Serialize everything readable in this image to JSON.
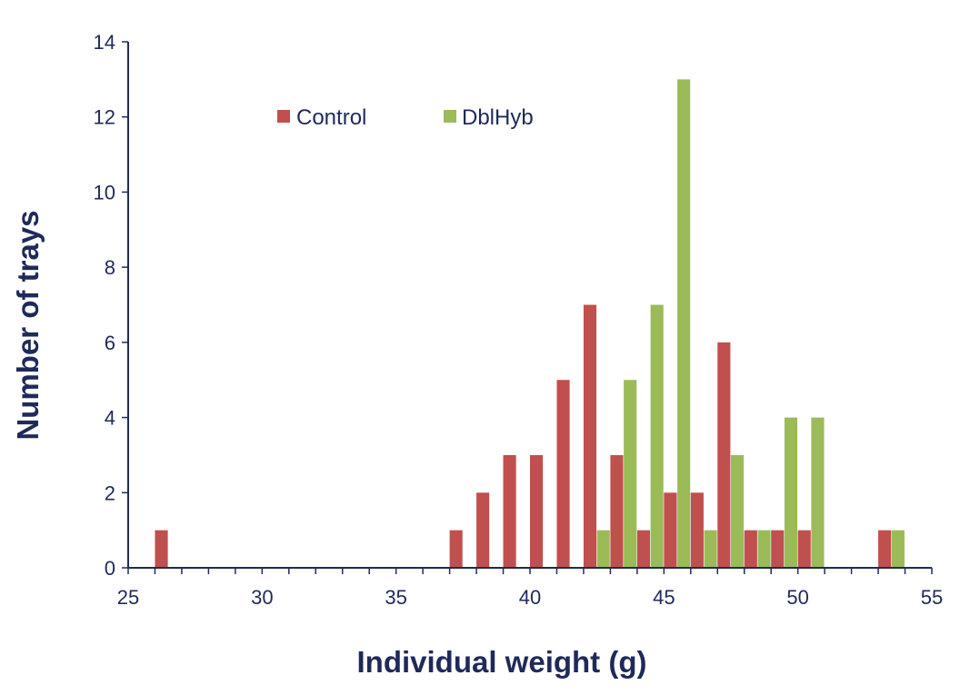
{
  "chart_data": {
    "type": "bar",
    "xlabel": "Individual weight (g)",
    "ylabel": "Number of trays",
    "xlim": [
      25,
      55
    ],
    "ylim": [
      0,
      14
    ],
    "x_ticks": [
      25,
      30,
      35,
      40,
      45,
      50,
      55
    ],
    "y_ticks": [
      0,
      2,
      4,
      6,
      8,
      10,
      12,
      14
    ],
    "bin_width": 1,
    "legend_position": "top-left",
    "grid": false,
    "categories": [
      26,
      27,
      28,
      29,
      30,
      31,
      32,
      33,
      34,
      35,
      36,
      37,
      38,
      39,
      40,
      41,
      42,
      43,
      44,
      45,
      46,
      47,
      48,
      49,
      50,
      51,
      52,
      53,
      54
    ],
    "series": [
      {
        "name": "Control",
        "color": "#c0504d",
        "values": [
          1,
          0,
          0,
          0,
          0,
          0,
          0,
          0,
          0,
          0,
          0,
          1,
          2,
          3,
          3,
          5,
          7,
          3,
          1,
          2,
          2,
          6,
          1,
          1,
          1,
          0,
          0,
          1,
          0
        ]
      },
      {
        "name": "DblHyb",
        "color": "#9bbb59",
        "values": [
          0,
          0,
          0,
          0,
          0,
          0,
          0,
          0,
          0,
          0,
          0,
          0,
          0,
          0,
          0,
          0,
          1,
          5,
          7,
          13,
          1,
          3,
          1,
          4,
          4,
          0,
          0,
          1,
          0
        ]
      }
    ]
  }
}
